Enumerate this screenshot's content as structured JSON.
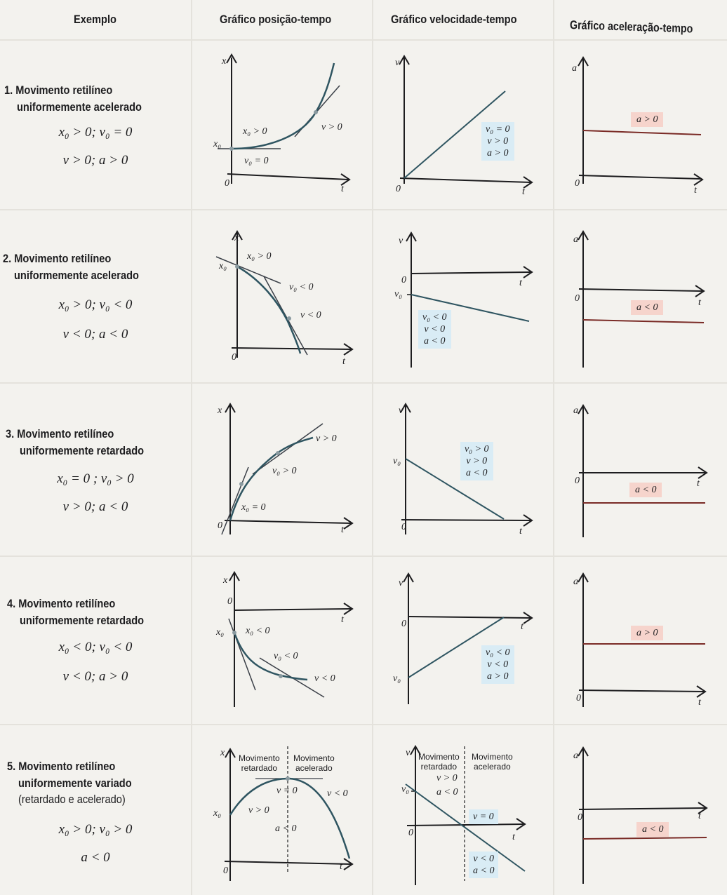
{
  "headers": {
    "example": "Exemplo",
    "position": "Gráfico posição-tempo",
    "velocity": "Gráfico velocidade-tempo",
    "acceleration": "Gráfico aceleração-tempo"
  },
  "axes": {
    "x": "x",
    "v": "v",
    "a": "a",
    "t": "t",
    "zero": "0",
    "x0": "x₀",
    "v0": "v₀"
  },
  "rows": [
    {
      "title1": "1. Movimento retilíneo",
      "title2": "uniformemente acelerado",
      "f1": "x₀ > 0; v₀ = 0",
      "f2": "v > 0; a > 0",
      "pos_labels": [
        "x₀ > 0",
        "v > 0",
        "v₀ = 0"
      ],
      "vel_box": [
        "v₀ = 0",
        "v > 0",
        "a > 0"
      ],
      "acc_box": "a > 0"
    },
    {
      "title1": "2. Movimento retilíneo",
      "title2": "uniformemente acelerado",
      "f1": "x₀ > 0; v₀ < 0",
      "f2": "v < 0; a < 0",
      "pos_labels": [
        "x₀ > 0",
        "v₀ < 0",
        "v < 0"
      ],
      "vel_box": [
        "v₀ < 0",
        "v < 0",
        "a < 0"
      ],
      "acc_box": "a < 0"
    },
    {
      "title1": "3. Movimento retilíneo",
      "title2": "uniformemente retardado",
      "f1": "x₀ = 0 ; v₀ > 0",
      "f2": "v > 0; a < 0",
      "pos_labels": [
        "v > 0",
        "v₀ > 0",
        "x₀ = 0"
      ],
      "vel_box": [
        "v₀ > 0",
        "v > 0",
        "a < 0"
      ],
      "acc_box": "a < 0"
    },
    {
      "title1": "4. Movimento retilíneo",
      "title2": "uniformemente retardado",
      "f1": "x₀ < 0; v₀ < 0",
      "f2": "v < 0; a > 0",
      "pos_labels": [
        "x₀ < 0",
        "v₀ < 0",
        "v < 0"
      ],
      "vel_box": [
        "v₀ < 0",
        "v < 0",
        "a > 0"
      ],
      "acc_box": "a > 0"
    },
    {
      "title1": "5. Movimento retilíneo",
      "title2": "uniformemente variado",
      "title3": "(retardado e acelerado)",
      "f1": "x₀ > 0; v₀ > 0",
      "f2": "a < 0",
      "pos_labels": [
        "v = 0",
        "v < 0",
        "v > 0",
        "a < 0"
      ],
      "phase_retarded": [
        "Movimento",
        "retardado"
      ],
      "phase_accelerated": [
        "Movimento",
        "acelerado"
      ],
      "vel_labels": [
        "v > 0",
        "a < 0",
        "v = 0",
        "v < 0",
        "a < 0"
      ],
      "acc_box": "a < 0"
    }
  ],
  "colors": {
    "axis": "#1d1d1f",
    "curve": "#2f5561",
    "tangent": "#3a3f47",
    "acc_line": "#7a2b26",
    "blue_box": "#d9ecf5",
    "red_box": "#f6d4cc"
  }
}
